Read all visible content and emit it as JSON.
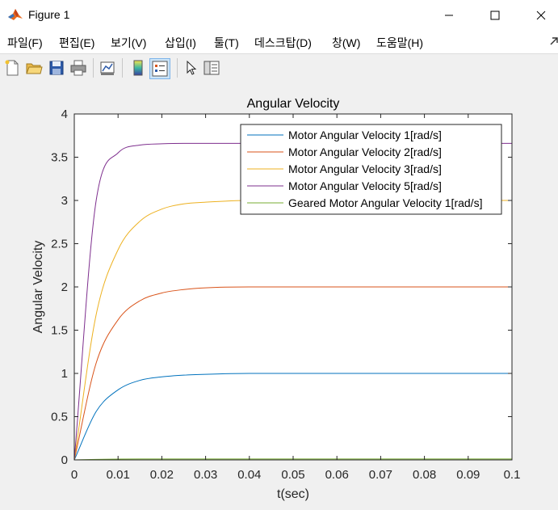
{
  "window": {
    "title": "Figure 1"
  },
  "menu": {
    "items": [
      "파일(F)",
      "편집(E)",
      "보기(V)",
      "삽입(I)",
      "툴(T)",
      "데스크탑(D)",
      "창(W)",
      "도움말(H)"
    ]
  },
  "toolbar": {
    "icons": [
      "new-figure-icon",
      "open-file-icon",
      "save-icon",
      "print-icon",
      "link-plot-icon",
      "colorbar-icon",
      "legend-icon",
      "pointer-icon",
      "property-inspector-icon"
    ]
  },
  "chart_data": {
    "type": "line",
    "title": "Angular Velocity",
    "xlabel": "t(sec)",
    "ylabel": "Angular Velocity",
    "xlim": [
      0,
      0.1
    ],
    "ylim": [
      0,
      4
    ],
    "xticks": [
      "0",
      "0.01",
      "0.02",
      "0.03",
      "0.04",
      "0.05",
      "0.06",
      "0.07",
      "0.08",
      "0.09",
      "0.1"
    ],
    "yticks": [
      "0",
      "0.5",
      "1",
      "1.5",
      "2",
      "2.5",
      "3",
      "3.5",
      "4"
    ],
    "grid": false,
    "legend_position": "top-right",
    "x": [
      0,
      0.005,
      0.01,
      0.015,
      0.02,
      0.025,
      0.03,
      0.04,
      0.05,
      0.06,
      0.07,
      0.08,
      0.09,
      0.1
    ],
    "series": [
      {
        "name": "Motor Angular Velocity 1[rad/s]",
        "color": "#0072bd",
        "values": [
          0,
          0.56,
          0.81,
          0.92,
          0.96,
          0.98,
          0.99,
          1.0,
          1.0,
          1.0,
          1.0,
          1.0,
          1.0,
          1.0
        ]
      },
      {
        "name": "Motor Angular Velocity 2[rad/s]",
        "color": "#d95319",
        "values": [
          0,
          1.12,
          1.62,
          1.84,
          1.93,
          1.97,
          1.99,
          2.0,
          2.0,
          2.0,
          2.0,
          2.0,
          2.0,
          2.0
        ]
      },
      {
        "name": "Motor Angular Velocity 3[rad/s]",
        "color": "#edb120",
        "values": [
          0,
          1.68,
          2.43,
          2.76,
          2.9,
          2.96,
          2.98,
          3.0,
          3.0,
          3.0,
          3.0,
          3.0,
          3.0,
          3.0
        ]
      },
      {
        "name": "Motor Angular Velocity 5[rad/s]",
        "color": "#7e2f8e",
        "values": [
          0,
          3.0,
          3.55,
          3.64,
          3.655,
          3.66,
          3.66,
          3.66,
          3.66,
          3.66,
          3.66,
          3.66,
          3.66,
          3.66
        ]
      },
      {
        "name": "Geared Motor Angular Velocity 1[rad/s]",
        "color": "#77ac30",
        "values": [
          0,
          0.006,
          0.009,
          0.01,
          0.01,
          0.01,
          0.01,
          0.01,
          0.01,
          0.01,
          0.01,
          0.01,
          0.01,
          0.01
        ]
      }
    ]
  }
}
